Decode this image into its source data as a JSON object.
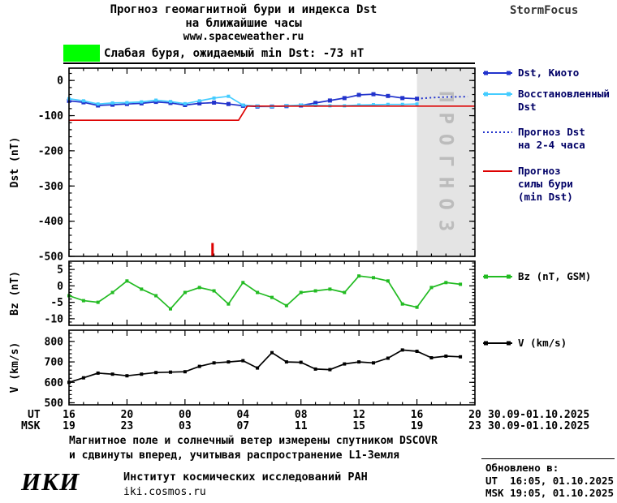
{
  "header": {
    "title_line1": "Прогноз геомагнитной бури и индекса Dst",
    "title_line2": "на ближайшие часы",
    "site": "www.spaceweather.ru",
    "brand": "StormFocus",
    "storm_banner": "Слабая буря, ожидаемый min Dst: -73 нТ",
    "storm_color": "#00ff00"
  },
  "legend": {
    "dst_kyoto": "Dst, Киото",
    "restored_1": "Восстановленный",
    "restored_2": "Dst",
    "forecast_1": "Прогноз Dst",
    "forecast_2": "на 2-4 часа",
    "storm_1": "Прогноз",
    "storm_2": "силы бури",
    "storm_3": "(min Dst)",
    "bz": "Bz (nT, GSM)",
    "v": "V (km/s)"
  },
  "xaxis": {
    "ut_label": "UT",
    "msk_label": "MSK",
    "ut_ticks": [
      "16",
      "20",
      "00",
      "04",
      "08",
      "12",
      "16",
      "20"
    ],
    "msk_ticks": [
      "19",
      "23",
      "03",
      "07",
      "11",
      "15",
      "19",
      "23"
    ],
    "ut_date": "30.09-01.10.2025",
    "msk_date": "30.09-01.10.2025"
  },
  "chart_data": [
    {
      "type": "line",
      "ylabel": "Dst (nT)",
      "ylim": [
        -500,
        35
      ],
      "yticks": [
        0,
        -100,
        -200,
        -300,
        -400,
        -500
      ],
      "y_minor_step": 20,
      "xlim": [
        0,
        28
      ],
      "xticks_hours": [
        0,
        4,
        8,
        12,
        16,
        20,
        24,
        28
      ],
      "forecast_band": {
        "x0": 24,
        "x1": 28,
        "label": "ПРОГНОЗ",
        "fill": "#e4e4e4",
        "label_color": "#bcbcbc"
      },
      "onset_mark": {
        "x": 9.9,
        "y_from": -500,
        "y_to": -462,
        "color": "#dd0000"
      },
      "series": [
        {
          "name": "Dst, Киото",
          "color": "#2233cc",
          "style": "solid",
          "marker": true,
          "msize": 5,
          "points": [
            [
              0,
              -58
            ],
            [
              1,
              -62
            ],
            [
              2,
              -71
            ],
            [
              3,
              -69
            ],
            [
              4,
              -67
            ],
            [
              5,
              -65
            ],
            [
              6,
              -61
            ],
            [
              7,
              -64
            ],
            [
              8,
              -70
            ],
            [
              9,
              -65
            ],
            [
              10,
              -63
            ],
            [
              11,
              -67
            ],
            [
              12,
              -72
            ],
            [
              13,
              -74
            ],
            [
              14,
              -74
            ],
            [
              15,
              -73
            ],
            [
              16,
              -71
            ],
            [
              17,
              -64
            ],
            [
              18,
              -57
            ],
            [
              19,
              -50
            ],
            [
              20,
              -41
            ],
            [
              21,
              -39
            ],
            [
              22,
              -44
            ],
            [
              23,
              -50
            ],
            [
              24,
              -52
            ]
          ]
        },
        {
          "name": "Восстановленный Dst",
          "color": "#44ccff",
          "style": "solid",
          "marker": true,
          "msize": 4,
          "points": [
            [
              0,
              -52
            ],
            [
              1,
              -58
            ],
            [
              2,
              -67
            ],
            [
              3,
              -64
            ],
            [
              4,
              -63
            ],
            [
              5,
              -61
            ],
            [
              6,
              -56
            ],
            [
              7,
              -60
            ],
            [
              8,
              -66
            ],
            [
              9,
              -58
            ],
            [
              10,
              -50
            ],
            [
              11,
              -45
            ],
            [
              12,
              -70
            ],
            [
              13,
              -73
            ],
            [
              14,
              -74
            ],
            [
              15,
              -72
            ],
            [
              16,
              -70
            ],
            [
              17,
              -71
            ],
            [
              18,
              -72
            ],
            [
              19,
              -72
            ],
            [
              20,
              -70
            ],
            [
              21,
              -69
            ],
            [
              22,
              -68
            ],
            [
              23,
              -68
            ],
            [
              24,
              -67
            ]
          ]
        },
        {
          "name": "Прогноз Dst на 2-4 часа",
          "color": "#2233cc",
          "style": "dotted",
          "marker": false,
          "points": [
            [
              24,
              -52
            ],
            [
              25,
              -49
            ],
            [
              26,
              -47
            ],
            [
              27.5,
              -46
            ]
          ]
        },
        {
          "name": "Прогноз силы бури (min Dst)",
          "color": "#dd0000",
          "style": "solid",
          "marker": false,
          "points": [
            [
              0,
              -113
            ],
            [
              11.7,
              -113
            ],
            [
              12.3,
              -73
            ],
            [
              28,
              -73
            ]
          ]
        }
      ]
    },
    {
      "type": "line",
      "ylabel": "Bz (nT)",
      "ylim": [
        -12,
        7.5
      ],
      "yticks": [
        5,
        0,
        -5,
        -10
      ],
      "y_minor_step": 1,
      "xlim": [
        0,
        28
      ],
      "xticks_hours": [
        0,
        4,
        8,
        12,
        16,
        20,
        24,
        28
      ],
      "series": [
        {
          "name": "Bz (nT, GSM)",
          "color": "#22bb22",
          "style": "solid",
          "marker": true,
          "msize": 4,
          "points": [
            [
              0,
              -3
            ],
            [
              1,
              -4.5
            ],
            [
              2,
              -5
            ],
            [
              3,
              -2
            ],
            [
              4,
              1.5
            ],
            [
              5,
              -1
            ],
            [
              6,
              -3
            ],
            [
              7,
              -7
            ],
            [
              8,
              -2
            ],
            [
              9,
              -0.5
            ],
            [
              10,
              -1.5
            ],
            [
              11,
              -5.5
            ],
            [
              12,
              1
            ],
            [
              13,
              -2
            ],
            [
              14,
              -3.5
            ],
            [
              15,
              -6
            ],
            [
              16,
              -2
            ],
            [
              17,
              -1.5
            ],
            [
              18,
              -1
            ],
            [
              19,
              -2
            ],
            [
              20,
              3
            ],
            [
              21,
              2.5
            ],
            [
              22,
              1.5
            ],
            [
              23,
              -5.5
            ],
            [
              24,
              -6.5
            ],
            [
              25,
              -0.5
            ],
            [
              26,
              1
            ],
            [
              27,
              0.5
            ]
          ]
        }
      ]
    },
    {
      "type": "line",
      "ylabel": "V (km/s)",
      "ylim": [
        490,
        855
      ],
      "yticks": [
        800,
        700,
        600,
        500
      ],
      "y_minor_step": 20,
      "xlim": [
        0,
        28
      ],
      "xticks_hours": [
        0,
        4,
        8,
        12,
        16,
        20,
        24,
        28
      ],
      "series": [
        {
          "name": "V (km/s)",
          "color": "#000000",
          "style": "solid",
          "marker": true,
          "msize": 4,
          "points": [
            [
              0,
              600
            ],
            [
              1,
              622
            ],
            [
              2,
              645
            ],
            [
              3,
              640
            ],
            [
              4,
              632
            ],
            [
              5,
              640
            ],
            [
              6,
              648
            ],
            [
              7,
              650
            ],
            [
              8,
              652
            ],
            [
              9,
              678
            ],
            [
              10,
              695
            ],
            [
              11,
              700
            ],
            [
              12,
              706
            ],
            [
              13,
              670
            ],
            [
              14,
              745
            ],
            [
              15,
              700
            ],
            [
              16,
              698
            ],
            [
              17,
              665
            ],
            [
              18,
              662
            ],
            [
              19,
              690
            ],
            [
              20,
              700
            ],
            [
              21,
              695
            ],
            [
              22,
              718
            ],
            [
              23,
              758
            ],
            [
              24,
              752
            ],
            [
              25,
              720
            ],
            [
              26,
              728
            ],
            [
              27,
              725
            ]
          ]
        }
      ]
    }
  ],
  "footer": {
    "note_1": "Магнитное поле и солнечный ветер измерены спутником DSCOVR",
    "note_2": "и сдвинуты вперед, учитывая распространение L1-Земля",
    "logo": "ИКИ",
    "institute": "Институт космических исследований РАН",
    "site": "iki.cosmos.ru"
  },
  "updated": {
    "heading": "Обновлено в:",
    "ut": "UT  16:05, 01.10.2025",
    "msk": "MSK 19:05, 01.10.2025"
  }
}
